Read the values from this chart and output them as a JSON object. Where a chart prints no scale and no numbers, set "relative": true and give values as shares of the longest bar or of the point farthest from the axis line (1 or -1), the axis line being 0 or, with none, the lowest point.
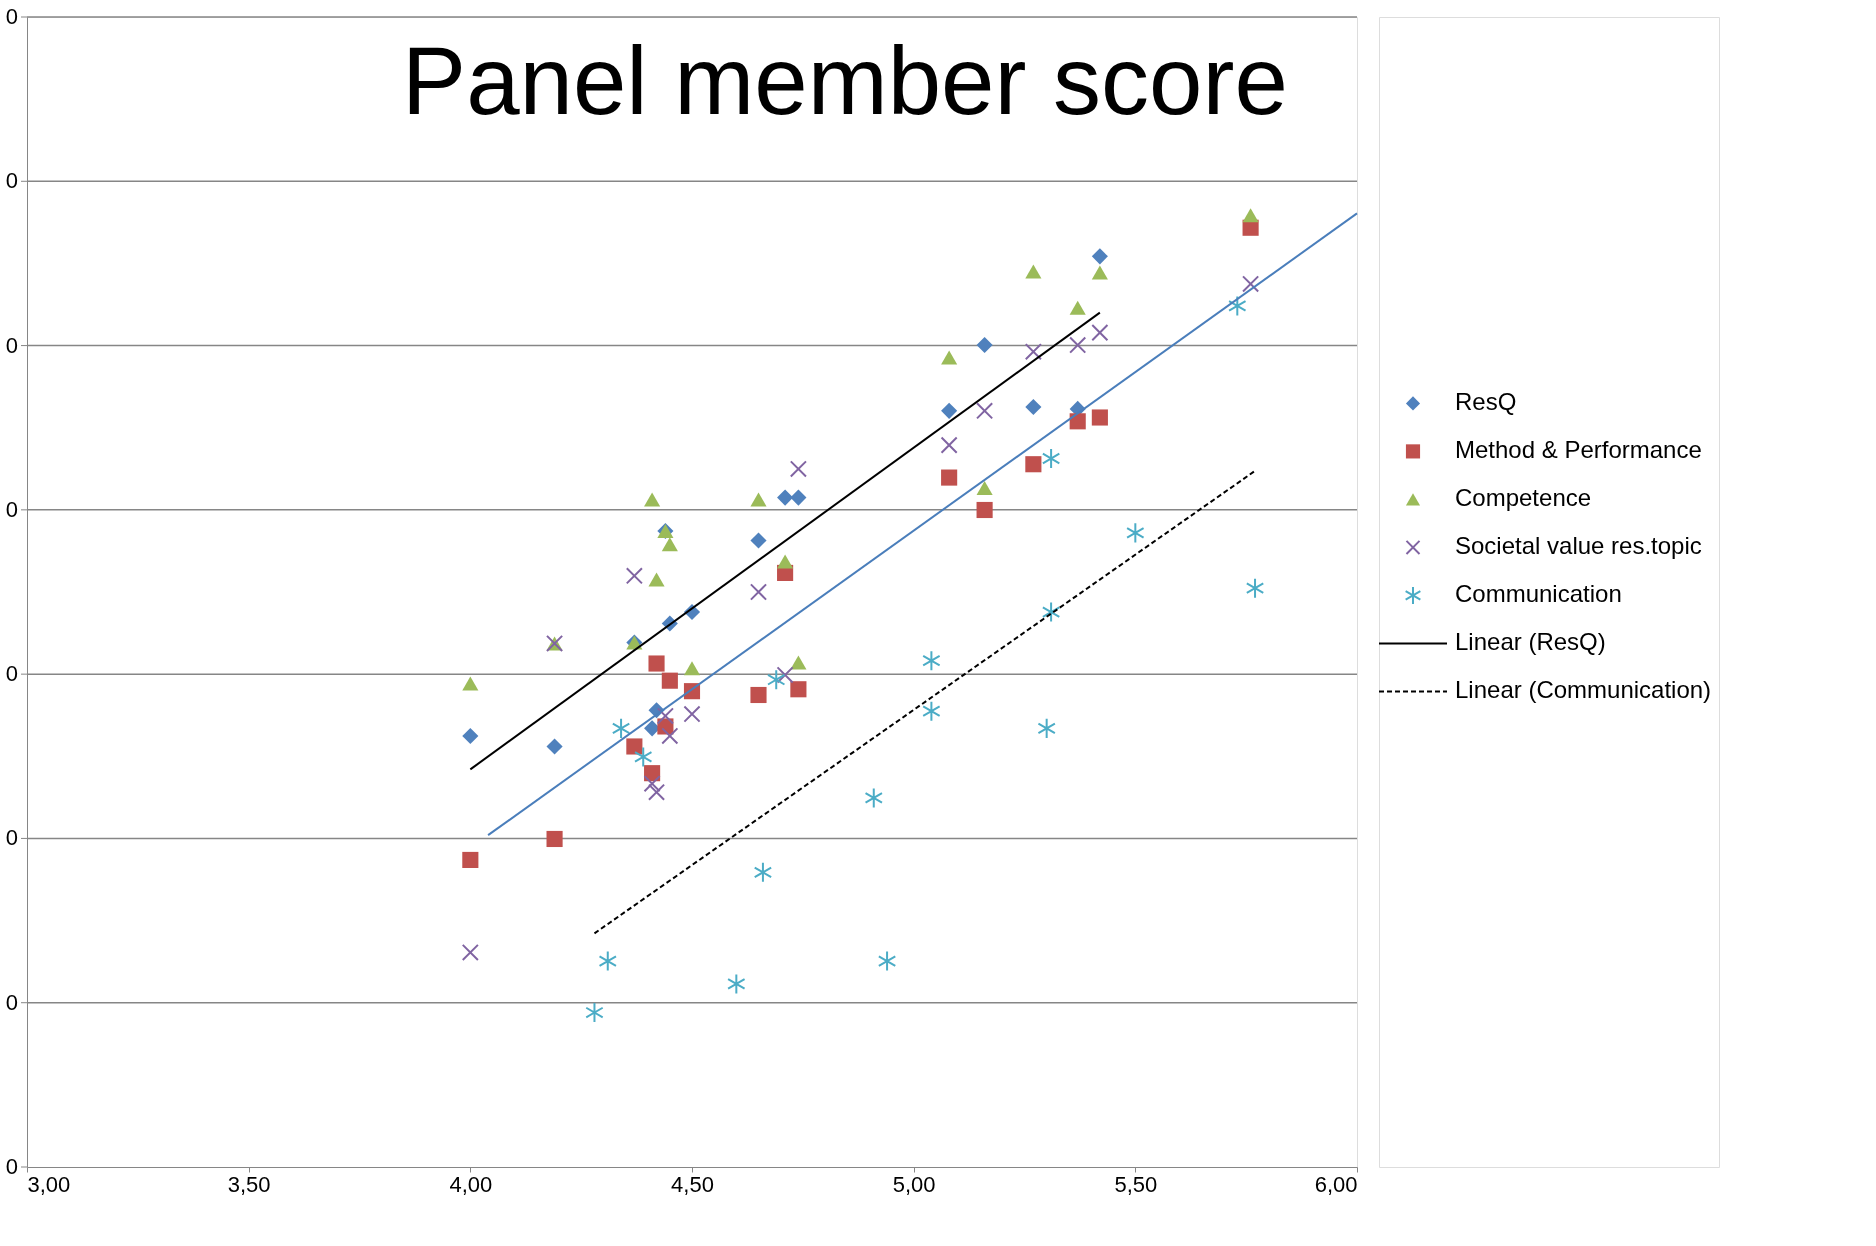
{
  "chart_data": {
    "type": "scatter",
    "title": "Panel member score",
    "relative": true,
    "legend": "right",
    "grid": "y",
    "xlim": [
      3,
      6
    ],
    "xticks": [
      {
        "value": 3,
        "label": "3,00"
      },
      {
        "value": 3.5,
        "label": "3,50"
      },
      {
        "value": 4,
        "label": "4,00"
      },
      {
        "value": 4.5,
        "label": "4,50"
      },
      {
        "value": 5,
        "label": "5,00"
      },
      {
        "value": 5.5,
        "label": "5,50"
      },
      {
        "value": 6,
        "label": "6,00"
      }
    ],
    "annotations": [
      "0",
      "0",
      "0",
      "0",
      "0",
      "0",
      "0",
      "0"
    ],
    "series": [
      {
        "name": "ResQ",
        "type": "scatter",
        "marker": "diamond",
        "color": "#4f81bd",
        "x": [
          4.0,
          4.19,
          4.37,
          4.42,
          4.41,
          4.44,
          4.45,
          4.5,
          4.65,
          4.71,
          4.74,
          5.08,
          5.16,
          5.27,
          5.37,
          5.42
        ],
        "values": [
          0.452,
          0.441,
          0.55,
          0.479,
          0.46,
          0.667,
          0.57,
          0.582,
          0.657,
          0.702,
          0.702,
          0.793,
          0.862,
          0.797,
          0.795,
          0.955
        ]
      },
      {
        "name": "Method & Performance",
        "type": "scatter",
        "marker": "square",
        "color": "#c0504d",
        "x": [
          4.0,
          4.19,
          4.37,
          4.41,
          4.42,
          4.44,
          4.45,
          4.5,
          4.65,
          4.71,
          4.74,
          5.08,
          5.16,
          5.27,
          5.37,
          5.42,
          5.76
        ],
        "values": [
          0.322,
          0.344,
          0.441,
          0.413,
          0.528,
          0.462,
          0.51,
          0.499,
          0.495,
          0.623,
          0.501,
          0.723,
          0.689,
          0.737,
          0.782,
          0.786,
          0.985
        ]
      },
      {
        "name": "Competence",
        "type": "scatter",
        "marker": "triangle",
        "color": "#9bbb59",
        "x": [
          4.0,
          4.19,
          4.37,
          4.41,
          4.42,
          4.44,
          4.45,
          4.5,
          4.65,
          4.71,
          4.74,
          5.08,
          5.16,
          5.27,
          5.37,
          5.42,
          5.76
        ],
        "values": [
          0.507,
          0.549,
          0.55,
          0.7,
          0.616,
          0.667,
          0.653,
          0.523,
          0.7,
          0.635,
          0.529,
          0.849,
          0.712,
          0.939,
          0.901,
          0.938,
          0.998
        ]
      },
      {
        "name": "Societal value res.topic",
        "type": "scatter",
        "marker": "cross",
        "color": "#8064a2",
        "x": [
          4.0,
          4.19,
          4.37,
          4.41,
          4.42,
          4.44,
          4.45,
          4.5,
          4.65,
          4.71,
          4.74,
          5.08,
          5.16,
          5.27,
          5.37,
          5.42,
          5.76
        ],
        "values": [
          0.225,
          0.549,
          0.62,
          0.402,
          0.393,
          0.473,
          0.452,
          0.475,
          0.603,
          0.516,
          0.732,
          0.757,
          0.793,
          0.855,
          0.862,
          0.875,
          0.926
        ]
      },
      {
        "name": "Communication",
        "type": "scatter",
        "color": "#4bacc6",
        "x": [
          4.28,
          4.31,
          4.34,
          4.39,
          4.6,
          4.66,
          4.69,
          4.91,
          4.94,
          5.04,
          5.04,
          5.3,
          5.31,
          5.31,
          5.5,
          5.73,
          5.77
        ],
        "values": [
          0.162,
          0.216,
          0.46,
          0.43,
          0.192,
          0.309,
          0.511,
          0.387,
          0.216,
          0.478,
          0.531,
          0.46,
          0.582,
          0.743,
          0.665,
          0.903,
          0.607
        ]
      },
      {
        "name": "Linear (ResQ)",
        "type": "line",
        "line_style": "solid",
        "color": "#000000",
        "x": [
          4.0,
          5.42
        ],
        "values": [
          0.417,
          0.896
        ]
      },
      {
        "name": "Linear (Communication)",
        "type": "line",
        "line_style": "dashed",
        "color": "#000000",
        "x": [
          4.28,
          5.77
        ],
        "values": [
          0.245,
          0.73
        ]
      },
      {
        "type": "line",
        "line_style": "solid",
        "color": "#4a7ebb",
        "x": [
          4.04,
          6.0
        ],
        "values": [
          0.348,
          1.0
        ]
      }
    ]
  }
}
